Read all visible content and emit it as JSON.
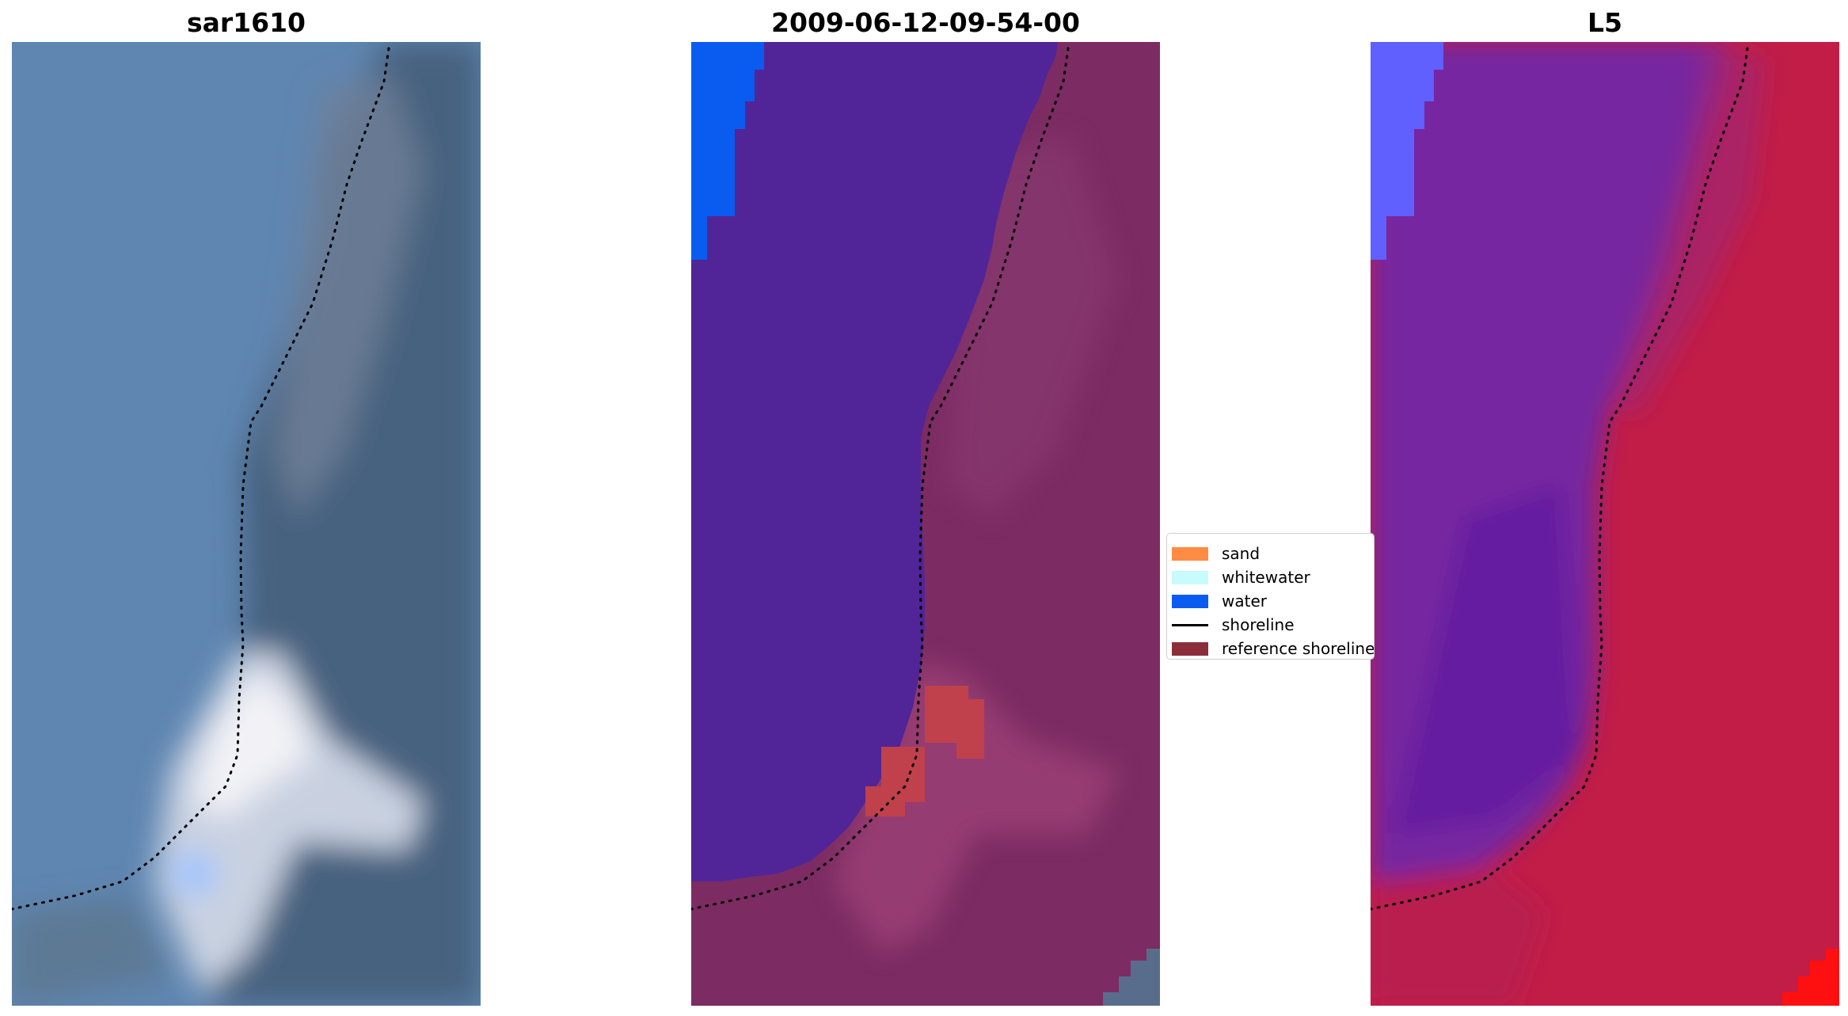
{
  "panels": [
    {
      "title": "sar1610",
      "kind": "rgb"
    },
    {
      "title": "2009-06-12-09-54-00",
      "kind": "classified"
    },
    {
      "title": "L5",
      "kind": "index"
    }
  ],
  "legend": {
    "items": [
      {
        "label": "sand",
        "type": "patch",
        "color": "#ff8c42"
      },
      {
        "label": "whitewater",
        "type": "patch",
        "color": "#c8fbfb"
      },
      {
        "label": "water",
        "type": "patch",
        "color": "#0a5cf0"
      },
      {
        "label": "shoreline",
        "type": "line",
        "color": "#000000"
      },
      {
        "label": "reference shoreline",
        "type": "patch",
        "color": "#8b2e3a"
      }
    ]
  },
  "colors": {
    "rgb_sea": "#5f86b1",
    "rgb_land": "#47627f",
    "rgb_surf": "#e9eef6",
    "class_water_region": "#512597",
    "class_land": "#7c2c63",
    "class_water_patch": "#0a5cf0",
    "class_red_patch": "#c0414b",
    "index_water": "#7626a0",
    "index_land": "#c11d47",
    "index_blue": "#6060ff",
    "index_red": "#ff1010"
  }
}
